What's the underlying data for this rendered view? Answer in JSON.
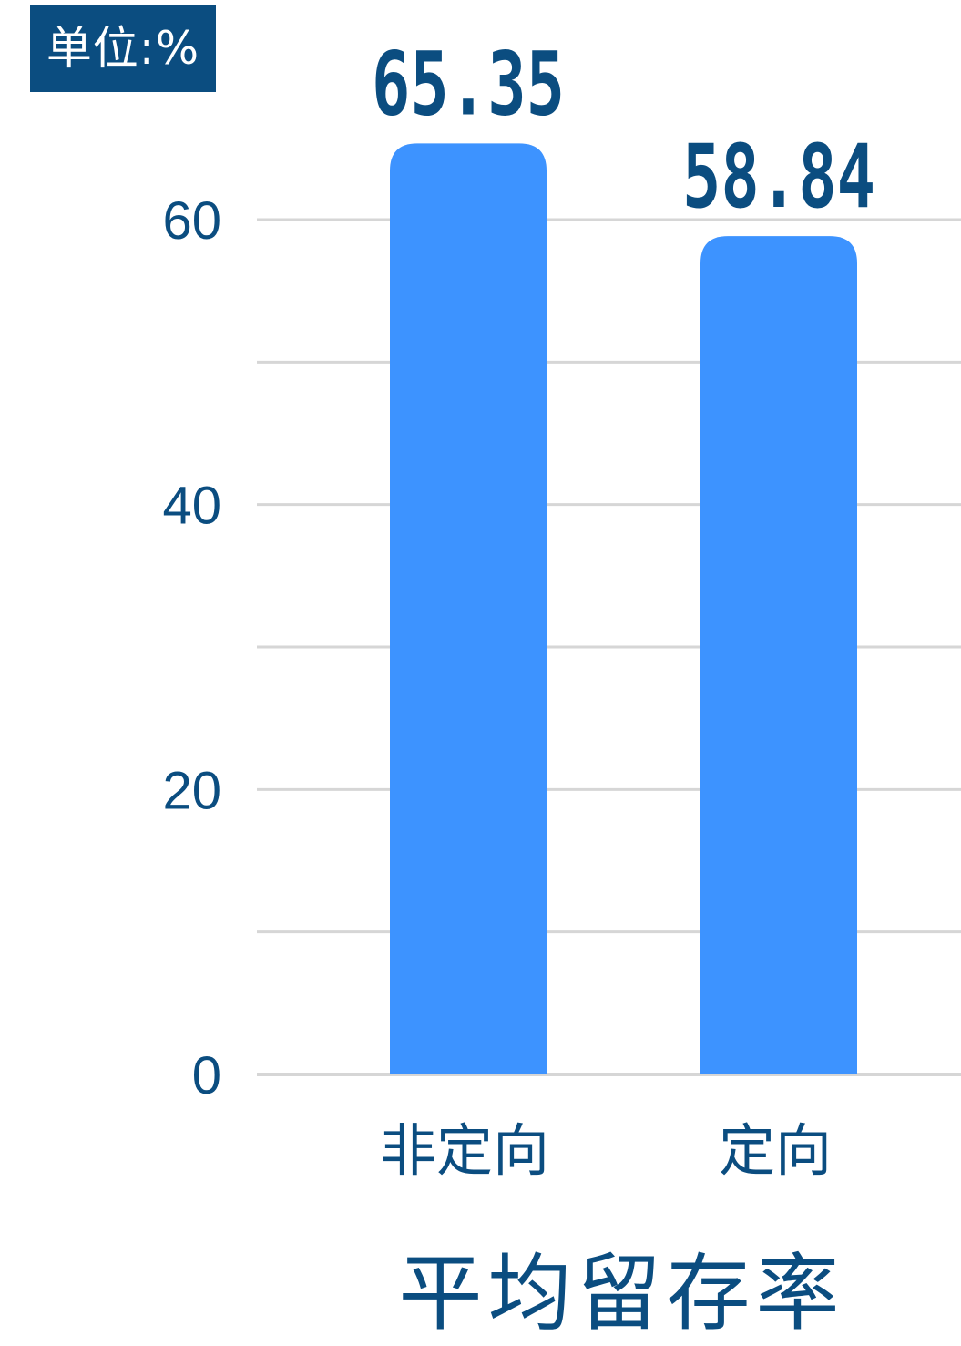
{
  "unit_label": "单位:%",
  "colors": {
    "bar": "#3d93ff",
    "text": "#0b4d80",
    "grid": "#d6d6d6",
    "badge_bg": "#0b4d80"
  },
  "chart_data": {
    "type": "bar",
    "title": "平均留存率",
    "categories": [
      "非定向",
      "定向"
    ],
    "values": [
      65.35,
      58.84
    ],
    "value_labels": [
      "65.35",
      "58.84"
    ],
    "ylim": [
      0,
      60
    ],
    "yticks": [
      "0",
      "20",
      "40",
      "60"
    ],
    "grid_values": [
      0,
      10,
      20,
      30,
      40,
      50,
      60
    ],
    "grid": true,
    "legend": "none"
  }
}
